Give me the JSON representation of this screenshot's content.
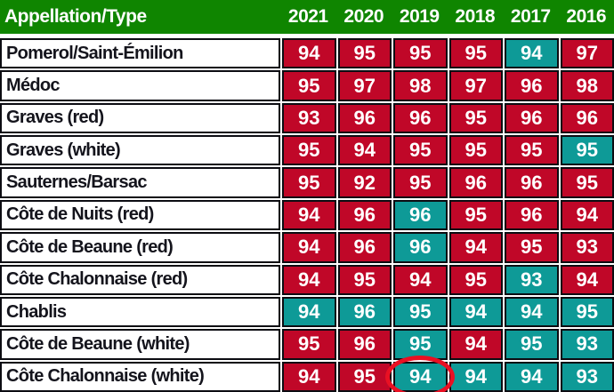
{
  "colors": {
    "header_bg": "#0f8500",
    "header_text": "#ffffff",
    "score_bg_red": "#c00728",
    "score_bg_teal": "#0e9a97",
    "score_text": "#ffffff",
    "row_label_text": "#14141c",
    "grid_border": "#0c0c12",
    "circle_stroke": "#e91023"
  },
  "chart_data": {
    "type": "table",
    "columns": [
      "Appellation/Type",
      "2021",
      "2020",
      "2019",
      "2018",
      "2017",
      "2016"
    ],
    "rows": [
      {
        "name": "Pomerol/Saint-Émilion",
        "values": [
          94,
          95,
          95,
          95,
          94,
          97
        ],
        "teal_cols": [
          4
        ]
      },
      {
        "name": "Médoc",
        "values": [
          95,
          97,
          98,
          97,
          96,
          98
        ],
        "teal_cols": []
      },
      {
        "name": "Graves (red)",
        "values": [
          93,
          96,
          96,
          95,
          96,
          96
        ],
        "teal_cols": []
      },
      {
        "name": "Graves (white)",
        "values": [
          95,
          94,
          95,
          95,
          95,
          95
        ],
        "teal_cols": [
          5
        ]
      },
      {
        "name": "Sauternes/Barsac",
        "values": [
          95,
          92,
          95,
          96,
          96,
          95
        ],
        "teal_cols": []
      },
      {
        "name": "Côte de Nuits (red)",
        "values": [
          94,
          96,
          96,
          95,
          96,
          94
        ],
        "teal_cols": [
          2
        ]
      },
      {
        "name": "Côte de Beaune (red)",
        "values": [
          94,
          96,
          96,
          94,
          95,
          93
        ],
        "teal_cols": [
          2
        ]
      },
      {
        "name": "Côte Chalonnaise (red)",
        "values": [
          94,
          95,
          94,
          95,
          93,
          94
        ],
        "teal_cols": [
          4
        ]
      },
      {
        "name": "Chablis",
        "values": [
          94,
          96,
          95,
          94,
          94,
          95
        ],
        "teal_cols": [
          0,
          1,
          2,
          3,
          4,
          5
        ]
      },
      {
        "name": "Côte de Beaune (white)",
        "values": [
          95,
          96,
          95,
          94,
          95,
          93
        ],
        "teal_cols": [
          2,
          4,
          5
        ]
      },
      {
        "name": "Côte Chalonnaise (white)",
        "values": [
          94,
          95,
          94,
          94,
          94,
          93
        ],
        "teal_cols": [
          2,
          3,
          4,
          5
        ]
      }
    ],
    "annotation": {
      "circled_cell": {
        "row": "Côte Chalonnaise (white)",
        "column": "2019",
        "value": 94
      }
    }
  }
}
